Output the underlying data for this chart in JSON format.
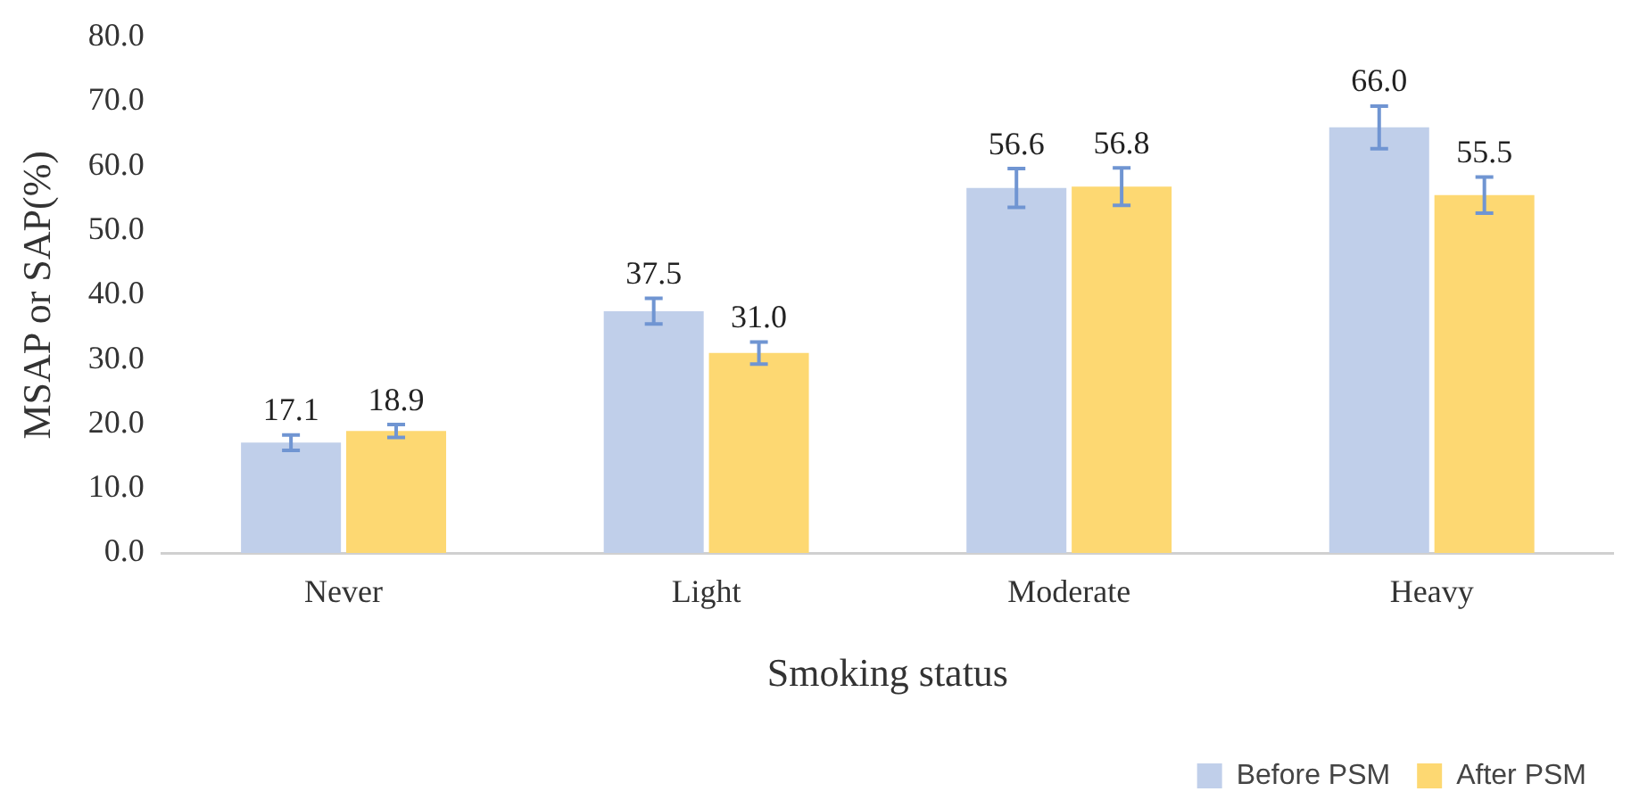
{
  "chart_data": {
    "type": "bar",
    "xlabel": "Smoking status",
    "ylabel": "MSAP or SAP(%)",
    "categories": [
      "Never",
      "Light",
      "Moderate",
      "Heavy"
    ],
    "series": [
      {
        "name": "Before PSM",
        "color": "#c0cfea",
        "values": [
          17.1,
          37.5,
          56.6,
          66.0
        ],
        "value_labels": [
          "17.1",
          "37.5",
          "56.6",
          "66.0"
        ],
        "errors": [
          1.2,
          2.0,
          3.0,
          3.3
        ]
      },
      {
        "name": "After PSM",
        "color": "#fdd872",
        "values": [
          18.9,
          31.0,
          56.8,
          55.5
        ],
        "value_labels": [
          "18.9",
          "31.0",
          "56.8",
          "55.5"
        ],
        "errors": [
          1.0,
          1.7,
          2.9,
          2.8
        ]
      }
    ],
    "ylim": [
      0,
      80
    ],
    "yticks": [
      {
        "value": 0,
        "label": "0.0"
      },
      {
        "value": 10,
        "label": "10.0"
      },
      {
        "value": 20,
        "label": "20.0"
      },
      {
        "value": 30,
        "label": "30.0"
      },
      {
        "value": 40,
        "label": "40.0"
      },
      {
        "value": 50,
        "label": "50.0"
      },
      {
        "value": 60,
        "label": "60.0"
      },
      {
        "value": 70,
        "label": "70.0"
      },
      {
        "value": 80,
        "label": "80.0"
      }
    ],
    "grid": false,
    "legend": "bottom right"
  }
}
